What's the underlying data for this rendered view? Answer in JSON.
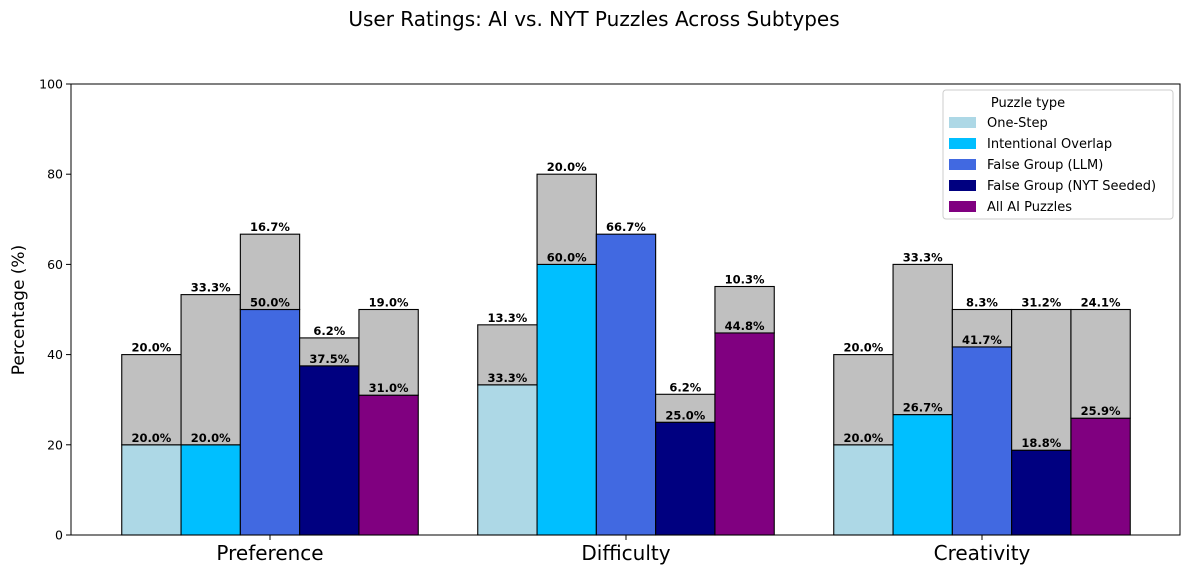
{
  "chart_data": {
    "type": "bar",
    "title": "User Ratings: AI vs. NYT Puzzles Across Subtypes",
    "ylabel": "Percentage (%)",
    "xlabel": "",
    "ylim": [
      0,
      100
    ],
    "yticks": [
      "0",
      "20",
      "40",
      "60",
      "80",
      "100"
    ],
    "categories": [
      "Preference",
      "Difficulty",
      "Creativity"
    ],
    "grid": false,
    "legend": {
      "title": "Puzzle type",
      "placement": "top-right"
    },
    "stack_top_color": "#c0c0c0",
    "series": [
      {
        "name": "One-Step",
        "color": "#add8e6",
        "base": [
          20.0,
          33.3,
          20.0
        ],
        "top": [
          20.0,
          13.3,
          20.0
        ],
        "base_labels": [
          "20.0%",
          "33.3%",
          "20.0%"
        ],
        "top_labels": [
          "20.0%",
          "13.3%",
          "20.0%"
        ]
      },
      {
        "name": "Intentional Overlap",
        "color": "#00bfff",
        "base": [
          20.0,
          60.0,
          26.7
        ],
        "top": [
          33.3,
          20.0,
          33.3
        ],
        "base_labels": [
          "20.0%",
          "60.0%",
          "26.7%"
        ],
        "top_labels": [
          "33.3%",
          "20.0%",
          "33.3%"
        ]
      },
      {
        "name": "False Group (LLM)",
        "color": "#4169e1",
        "base": [
          50.0,
          66.7,
          41.7
        ],
        "top": [
          16.7,
          0,
          8.3
        ],
        "base_labels": [
          "50.0%",
          "66.7%",
          "41.7%"
        ],
        "top_labels": [
          "16.7%",
          "",
          "8.3%"
        ]
      },
      {
        "name": "False Group (NYT Seeded)",
        "color": "#000080",
        "base": [
          37.5,
          25.0,
          18.8
        ],
        "top": [
          6.2,
          6.2,
          31.2
        ],
        "base_labels": [
          "37.5%",
          "25.0%",
          "18.8%"
        ],
        "top_labels": [
          "6.2%",
          "6.2%",
          "31.2%"
        ]
      },
      {
        "name": "All AI Puzzles",
        "color": "#800080",
        "base": [
          31.0,
          44.8,
          25.9
        ],
        "top": [
          19.0,
          10.3,
          24.1
        ],
        "base_labels": [
          "31.0%",
          "44.8%",
          "25.9%"
        ],
        "top_labels": [
          "19.0%",
          "10.3%",
          "24.1%"
        ]
      }
    ]
  }
}
